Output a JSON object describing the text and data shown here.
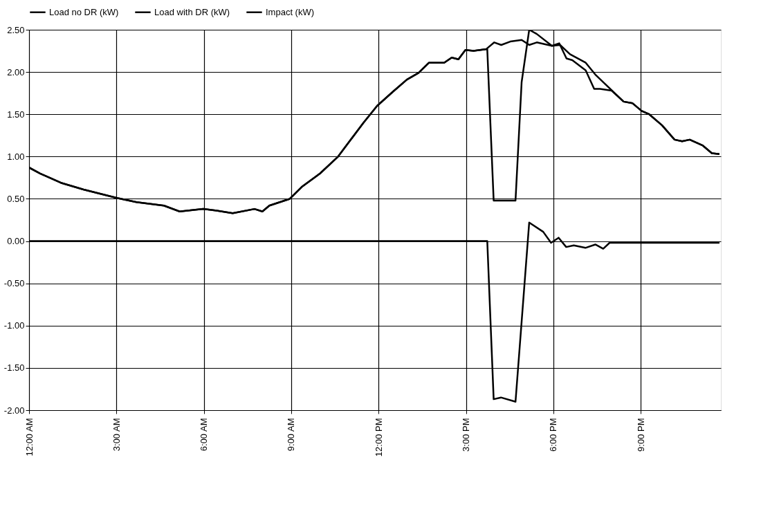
{
  "chart_data": {
    "type": "line",
    "xlim": [
      0,
      23.75
    ],
    "xticks": [
      {
        "value": 0,
        "label": "12:00 AM"
      },
      {
        "value": 3,
        "label": "3:00 AM"
      },
      {
        "value": 6,
        "label": "6:00 AM"
      },
      {
        "value": 9,
        "label": "9:00 AM"
      },
      {
        "value": 12,
        "label": "12:00 PM"
      },
      {
        "value": 15,
        "label": "3:00 PM"
      },
      {
        "value": 18,
        "label": "6:00 PM"
      },
      {
        "value": 21,
        "label": "9:00 PM"
      }
    ],
    "ylim": [
      -2,
      2.5
    ],
    "yticks": [
      {
        "value": -2,
        "label": "-2.00"
      },
      {
        "value": -1.5,
        "label": "-1.50"
      },
      {
        "value": -1,
        "label": "-1.00"
      },
      {
        "value": -0.5,
        "label": "-0.50"
      },
      {
        "value": 0,
        "label": "0.00"
      },
      {
        "value": 0.5,
        "label": "0.50"
      },
      {
        "value": 1,
        "label": "1.00"
      },
      {
        "value": 1.5,
        "label": "1.50"
      },
      {
        "value": 2,
        "label": "2.00"
      },
      {
        "value": 2.5,
        "label": "2.50"
      }
    ],
    "grid": true,
    "legend": "top",
    "line_style": "solid",
    "marker": "none",
    "series": [
      {
        "name": "Load no DR (kW)",
        "color": "#000000",
        "x": [
          0,
          0.38,
          1.09,
          1.87,
          3.02,
          3.69,
          4.63,
          5.17,
          5.98,
          6.44,
          6.99,
          7.74,
          8.01,
          8.25,
          8.95,
          9.36,
          9.99,
          10.61,
          11.48,
          11.95,
          12.5,
          12.97,
          13.37,
          13.73,
          14.25,
          14.51,
          14.74,
          14.98,
          15.26,
          15.69,
          15.97,
          16.21,
          16.52,
          16.91,
          17.17,
          17.43,
          17.95,
          18.23,
          18.57,
          19.11,
          19.44,
          19.8,
          20.41,
          20.72,
          21.03,
          21.29,
          21.73,
          22.16,
          22.42,
          22.68,
          23.13,
          23.44,
          23.7
        ],
        "values": [
          0.87,
          0.8,
          0.69,
          0.61,
          0.51,
          0.46,
          0.42,
          0.35,
          0.38,
          0.36,
          0.33,
          0.38,
          0.35,
          0.42,
          0.5,
          0.64,
          0.8,
          1.0,
          1.4,
          1.6,
          1.77,
          1.91,
          1.99,
          2.11,
          2.11,
          2.17,
          2.15,
          2.26,
          2.25,
          2.27,
          2.35,
          2.32,
          2.36,
          2.38,
          2.32,
          2.35,
          2.31,
          2.32,
          2.21,
          2.11,
          1.97,
          1.85,
          1.65,
          1.63,
          1.54,
          1.5,
          1.37,
          1.2,
          1.18,
          1.2,
          1.13,
          1.04,
          1.03
        ]
      },
      {
        "name": "Load with DR (kW)",
        "color": "#000000",
        "x": [
          0,
          0.38,
          1.09,
          1.87,
          3.02,
          3.69,
          4.63,
          5.17,
          5.98,
          6.44,
          6.99,
          7.74,
          8.01,
          8.25,
          8.95,
          9.36,
          9.99,
          10.61,
          11.48,
          11.95,
          12.5,
          12.97,
          13.37,
          13.73,
          14.25,
          14.51,
          14.74,
          14.98,
          15.26,
          15.73,
          15.95,
          16.7,
          16.91,
          17.17,
          17.43,
          17.95,
          18.2,
          18.45,
          18.65,
          19.11,
          19.4,
          19.6,
          20.0,
          20.41,
          20.72,
          21.03,
          21.29,
          21.73,
          22.16,
          22.42,
          22.68,
          23.13,
          23.44,
          23.7
        ],
        "values": [
          0.87,
          0.8,
          0.69,
          0.61,
          0.51,
          0.46,
          0.42,
          0.35,
          0.38,
          0.36,
          0.33,
          0.38,
          0.35,
          0.42,
          0.5,
          0.64,
          0.8,
          1.0,
          1.4,
          1.6,
          1.77,
          1.91,
          1.99,
          2.11,
          2.11,
          2.17,
          2.15,
          2.26,
          2.25,
          2.27,
          0.48,
          0.48,
          1.88,
          2.5,
          2.45,
          2.31,
          2.34,
          2.16,
          2.14,
          2.02,
          1.8,
          1.8,
          1.78,
          1.65,
          1.63,
          1.54,
          1.5,
          1.37,
          1.2,
          1.18,
          1.2,
          1.13,
          1.04,
          1.03
        ]
      },
      {
        "name": "Impact (kW)",
        "color": "#000000",
        "x": [
          0,
          15.73,
          15.95,
          16.2,
          16.7,
          17.17,
          17.65,
          17.92,
          18.18,
          18.44,
          18.7,
          19.1,
          19.44,
          19.71,
          19.93,
          23.7
        ],
        "values": [
          0,
          0,
          -1.87,
          -1.85,
          -1.9,
          0.22,
          0.11,
          -0.02,
          0.04,
          -0.07,
          -0.05,
          -0.08,
          -0.04,
          -0.09,
          -0.02,
          -0.02
        ]
      }
    ]
  }
}
